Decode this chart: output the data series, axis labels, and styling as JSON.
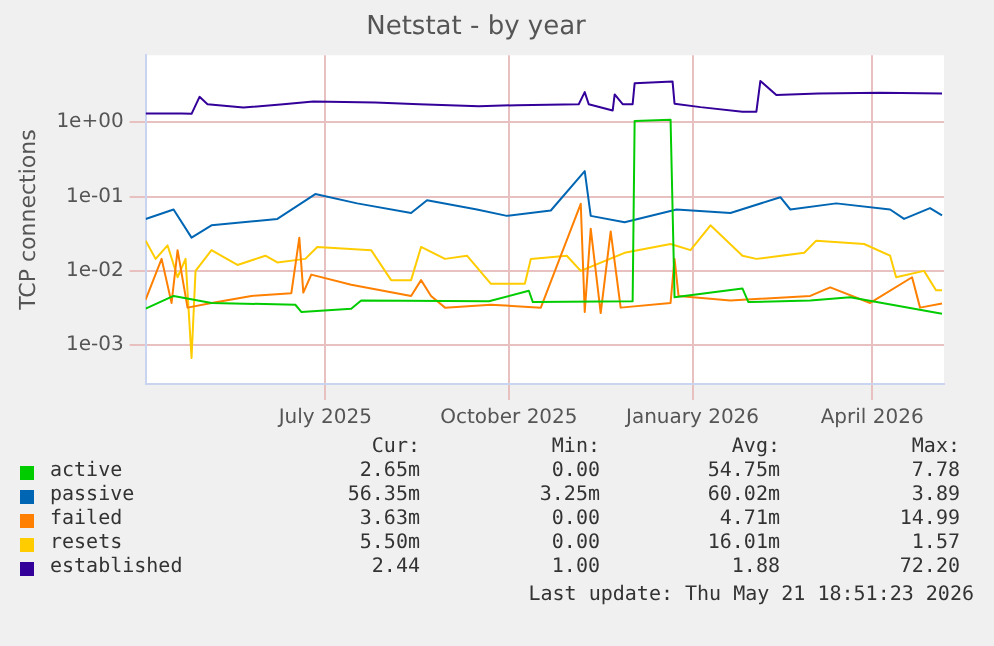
{
  "chart_data": {
    "type": "line",
    "title": "Netstat - by year",
    "ylabel": "TCP connections",
    "log": "y",
    "grid": true,
    "legend": "bottom",
    "marker": "none",
    "line_style": "solid",
    "xlim": [
      "2025-04-17",
      "2026-05-22"
    ],
    "xticks": [
      {
        "value": "2025-07-16",
        "label": "July 2025"
      },
      {
        "value": "2025-10-16",
        "label": "October 2025"
      },
      {
        "value": "2026-01-16",
        "label": "January 2026"
      },
      {
        "value": "2026-04-16",
        "label": "April 2026"
      }
    ],
    "ylim": [
      0.0003,
      8
    ],
    "yticks": [
      {
        "value": 0.001,
        "label": "1e-03"
      },
      {
        "value": 0.01,
        "label": "1e-02"
      },
      {
        "value": 0.1,
        "label": "1e-01"
      },
      {
        "value": 1,
        "label": "1e+00"
      }
    ],
    "series": [
      {
        "name": "active",
        "color": "#00cc00",
        "x": [
          "2025-04-17",
          "2025-05-01",
          "2025-05-20",
          "2025-07-01",
          "2025-07-04",
          "2025-07-29",
          "2025-08-03",
          "2025-10-06",
          "2025-10-26",
          "2025-10-28",
          "2025-12-17",
          "2025-12-18",
          "2026-01-05",
          "2026-01-07",
          "2026-02-10",
          "2026-02-13",
          "2026-03-16",
          "2026-04-05",
          "2026-05-21"
        ],
        "values": [
          0.0031,
          0.0046,
          0.0037,
          0.0035,
          0.0028,
          0.0031,
          0.004,
          0.0039,
          0.0054,
          0.0038,
          0.0039,
          1.04,
          1.08,
          0.0044,
          0.0058,
          0.0038,
          0.004,
          0.0044,
          0.00265
        ]
      },
      {
        "name": "passive",
        "color": "#0066b3",
        "x": [
          "2025-04-17",
          "2025-05-01",
          "2025-05-10",
          "2025-05-20",
          "2025-06-22",
          "2025-07-11",
          "2025-08-01",
          "2025-08-28",
          "2025-09-05",
          "2025-09-30",
          "2025-10-15",
          "2025-11-06",
          "2025-11-23",
          "2025-11-26",
          "2025-12-13",
          "2026-01-08",
          "2026-02-04",
          "2026-03-01",
          "2026-03-06",
          "2026-03-29",
          "2026-04-25",
          "2026-05-02",
          "2026-05-15",
          "2026-05-21"
        ],
        "values": [
          0.05,
          0.067,
          0.028,
          0.041,
          0.05,
          0.108,
          0.081,
          0.06,
          0.089,
          0.067,
          0.055,
          0.065,
          0.22,
          0.055,
          0.045,
          0.067,
          0.06,
          0.098,
          0.067,
          0.081,
          0.067,
          0.05,
          0.07,
          0.056
        ]
      },
      {
        "name": "failed",
        "color": "#ff8000",
        "x": [
          "2025-04-17",
          "2025-04-25",
          "2025-04-30",
          "2025-05-03",
          "2025-05-08",
          "2025-05-20",
          "2025-06-09",
          "2025-06-29",
          "2025-07-03",
          "2025-07-05",
          "2025-07-09",
          "2025-07-29",
          "2025-08-28",
          "2025-09-02",
          "2025-09-07",
          "2025-09-14",
          "2025-10-07",
          "2025-11-01",
          "2025-11-21",
          "2025-11-23",
          "2025-11-26",
          "2025-12-01",
          "2025-12-06",
          "2025-12-11",
          "2026-01-05",
          "2026-01-07",
          "2026-01-09",
          "2026-02-04",
          "2026-03-16",
          "2026-03-26",
          "2026-04-15",
          "2026-05-06",
          "2026-05-10",
          "2026-05-21"
        ],
        "values": [
          0.0041,
          0.0145,
          0.0037,
          0.019,
          0.0032,
          0.0037,
          0.0046,
          0.005,
          0.028,
          0.0051,
          0.0089,
          0.0065,
          0.0046,
          0.0075,
          0.0046,
          0.0032,
          0.0035,
          0.0032,
          0.08,
          0.0028,
          0.037,
          0.0027,
          0.034,
          0.0032,
          0.0037,
          0.0145,
          0.0046,
          0.004,
          0.0046,
          0.006,
          0.0037,
          0.0082,
          0.0032,
          0.00363
        ]
      },
      {
        "name": "resets",
        "color": "#ffcc00",
        "x": [
          "2025-04-17",
          "2025-04-22",
          "2025-04-28",
          "2025-05-03",
          "2025-05-07",
          "2025-05-10",
          "2025-05-12",
          "2025-05-20",
          "2025-06-02",
          "2025-06-16",
          "2025-06-22",
          "2025-07-06",
          "2025-07-12",
          "2025-08-08",
          "2025-08-18",
          "2025-08-28",
          "2025-09-02",
          "2025-09-14",
          "2025-09-25",
          "2025-10-07",
          "2025-10-24",
          "2025-10-27",
          "2025-11-14",
          "2025-11-21",
          "2025-12-13",
          "2026-01-05",
          "2026-01-15",
          "2026-01-25",
          "2026-02-10",
          "2026-02-17",
          "2026-03-13",
          "2026-03-19",
          "2026-04-12",
          "2026-04-25",
          "2026-04-28",
          "2026-05-12",
          "2026-05-18",
          "2026-05-21"
        ],
        "values": [
          0.0255,
          0.0145,
          0.022,
          0.0082,
          0.0145,
          0.00067,
          0.01,
          0.019,
          0.012,
          0.016,
          0.013,
          0.0145,
          0.021,
          0.019,
          0.0075,
          0.0075,
          0.021,
          0.0145,
          0.016,
          0.0067,
          0.0067,
          0.0145,
          0.016,
          0.01,
          0.0175,
          0.023,
          0.019,
          0.041,
          0.016,
          0.0145,
          0.0175,
          0.0255,
          0.023,
          0.016,
          0.0082,
          0.01,
          0.0055,
          0.0055
        ]
      },
      {
        "name": "established",
        "color": "#330099",
        "x": [
          "2025-04-17",
          "2025-05-05",
          "2025-05-10",
          "2025-05-14",
          "2025-05-18",
          "2025-06-05",
          "2025-06-25",
          "2025-07-10",
          "2025-08-10",
          "2025-09-01",
          "2025-10-01",
          "2025-10-20",
          "2025-11-20",
          "2025-11-23",
          "2025-11-25",
          "2025-12-07",
          "2025-12-08",
          "2025-12-12",
          "2025-12-17",
          "2025-12-18",
          "2026-01-06",
          "2026-01-07",
          "2026-01-20",
          "2026-02-10",
          "2026-02-17",
          "2026-02-19",
          "2026-02-27",
          "2026-03-20",
          "2026-04-20",
          "2026-05-21"
        ],
        "values": [
          1.31,
          1.31,
          1.3,
          2.2,
          1.75,
          1.58,
          1.75,
          1.9,
          1.85,
          1.75,
          1.65,
          1.7,
          1.75,
          2.55,
          1.75,
          1.44,
          2.37,
          1.75,
          1.75,
          3.35,
          3.55,
          1.78,
          1.6,
          1.39,
          1.39,
          3.6,
          2.33,
          2.45,
          2.5,
          2.44
        ]
      }
    ],
    "annotations": [
      "Cur:",
      "Min:",
      "Avg:",
      "Max:",
      "2.65m",
      "0.00",
      "54.75m",
      "7.78",
      "56.35m",
      "3.25m",
      "60.02m",
      "3.89",
      "3.63m",
      "0.00",
      "4.71m",
      "14.99",
      "5.50m",
      "0.00",
      "16.01m",
      "1.57",
      "2.44",
      "1.00",
      "1.88",
      "72.20",
      "Last update: Thu May 21 18:51:23 2026"
    ]
  }
}
